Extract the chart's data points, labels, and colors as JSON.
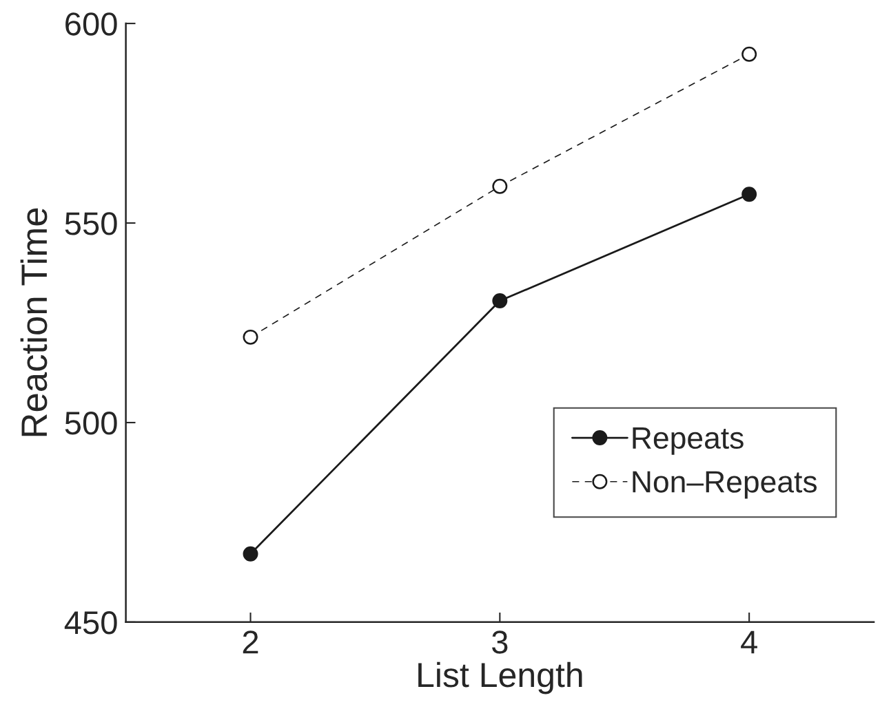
{
  "chart_data": {
    "type": "line",
    "xlabel": "List Length",
    "ylabel": "Reaction Time",
    "x": [
      2,
      3,
      4
    ],
    "series": [
      {
        "name": "Repeats",
        "color": "#1a1a1a",
        "values": [
          467.1,
          530.5,
          557.2
        ],
        "marker": "circle",
        "line_style": "solid"
      },
      {
        "name": "Non–Repeats",
        "color": "#1a1a1a",
        "values": [
          521.4,
          559.2,
          592.3
        ],
        "marker": "circle",
        "line_style": "dashed"
      }
    ],
    "xlim": [
      1.5,
      4.5
    ],
    "ylim": [
      450,
      600
    ],
    "xticks": [
      2,
      3,
      4
    ],
    "yticks": [
      450,
      500,
      550,
      600
    ],
    "grid": false,
    "legend": "bottom right"
  }
}
